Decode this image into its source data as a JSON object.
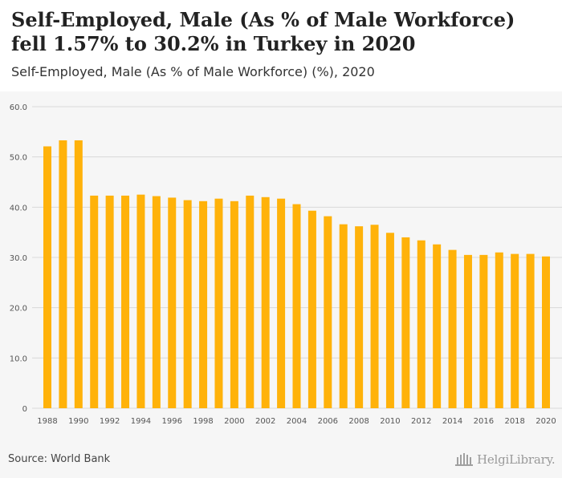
{
  "header": {
    "title": "Self-Employed, Male (As % of Male Workforce) fell 1.57% to 30.2% in Turkey in 2020",
    "subtitle": "Self-Employed, Male (As % of Male Workforce) (%), 2020"
  },
  "footer": {
    "source": "Source: World Bank",
    "logo_text": "HelgiLibrary."
  },
  "colors": {
    "bar": "#FFB20A",
    "grid": "#d9d9d9",
    "background": "#f6f6f6",
    "tick_text": "#555555"
  },
  "chart_data": {
    "type": "bar",
    "categories": [
      "1988",
      "1989",
      "1990",
      "1991",
      "1992",
      "1993",
      "1994",
      "1995",
      "1996",
      "1997",
      "1998",
      "1999",
      "2000",
      "2001",
      "2002",
      "2003",
      "2004",
      "2005",
      "2006",
      "2007",
      "2008",
      "2009",
      "2010",
      "2011",
      "2012",
      "2013",
      "2014",
      "2015",
      "2016",
      "2017",
      "2018",
      "2019",
      "2020"
    ],
    "values": [
      52.1,
      53.3,
      53.3,
      42.3,
      42.3,
      42.3,
      42.5,
      42.2,
      41.9,
      41.4,
      41.2,
      41.7,
      41.2,
      42.3,
      42.0,
      41.7,
      40.6,
      39.3,
      38.2,
      36.6,
      36.2,
      36.5,
      34.9,
      34.0,
      33.4,
      32.6,
      31.5,
      30.5,
      30.5,
      31.0,
      30.7,
      30.7,
      30.2
    ],
    "x_tick_labels": [
      "1988",
      "1990",
      "1992",
      "1994",
      "1996",
      "1998",
      "2000",
      "2002",
      "2004",
      "2006",
      "2008",
      "2010",
      "2012",
      "2014",
      "2016",
      "2018",
      "2020"
    ],
    "y_tick_labels": [
      "0",
      "10.0",
      "20.0",
      "30.0",
      "40.0",
      "50.0",
      "60.0"
    ],
    "y_ticks": [
      0,
      10,
      20,
      30,
      40,
      50,
      60
    ],
    "ylim": [
      0,
      60
    ],
    "title": "Self-Employed, Male (As % of Male Workforce) fell 1.57% to 30.2% in Turkey in 2020",
    "subtitle": "Self-Employed, Male (As % of Male Workforce) (%), 2020",
    "xlabel": "",
    "ylabel": "",
    "grid": true,
    "legend": "none"
  }
}
